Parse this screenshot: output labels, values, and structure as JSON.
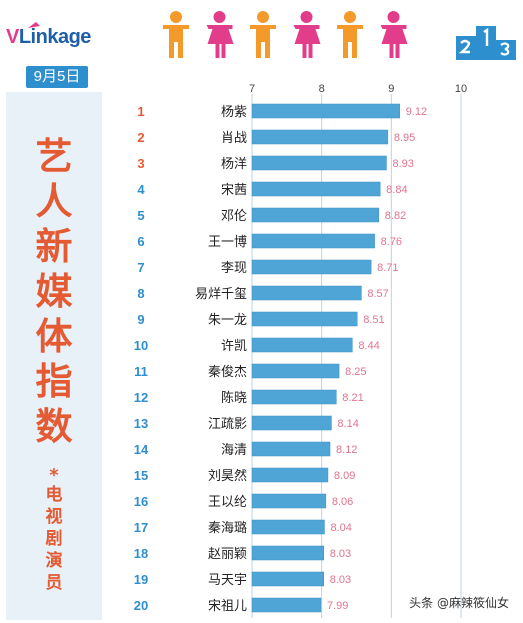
{
  "brand": {
    "logo_text_v": "V",
    "logo_text_rest": "Linkage"
  },
  "date": "9月5日",
  "title_chars": [
    "艺",
    "人",
    "新",
    "媒",
    "体",
    "指",
    "数"
  ],
  "subtitle_mark": "*",
  "subtitle_chars": [
    "电",
    "视",
    "剧",
    "演",
    "员"
  ],
  "watermark": "头条 @麻辣筱仙女",
  "colors": {
    "bar": "#4fa6d6",
    "bar_stroke": "#3b8fc0",
    "value_text": "#e0748e",
    "rank_top": "#e45a32",
    "rank_rest": "#2e8fcf",
    "name_text": "#222222",
    "grid": "#b8d4e8",
    "title": "#e45a32",
    "person_orange": "#f39a2a",
    "person_pink": "#e23d8b",
    "podium": "#2e8fcf"
  },
  "chart_data": {
    "type": "bar",
    "orientation": "horizontal",
    "title": "",
    "xlabel": "",
    "ylabel": "",
    "xlim": [
      7,
      10
    ],
    "x_ticks": [
      7,
      8,
      9,
      10
    ],
    "grid": true,
    "ranks": [
      1,
      2,
      3,
      4,
      5,
      6,
      7,
      8,
      9,
      10,
      11,
      12,
      13,
      14,
      15,
      16,
      17,
      18,
      19,
      20
    ],
    "categories": [
      "杨紫",
      "肖战",
      "杨洋",
      "宋茜",
      "邓伦",
      "王一博",
      "李现",
      "易烊千玺",
      "朱一龙",
      "许凯",
      "秦俊杰",
      "陈晓",
      "江疏影",
      "海清",
      "刘昊然",
      "王以纶",
      "秦海璐",
      "赵丽颖",
      "马天宇",
      "宋祖儿"
    ],
    "values": [
      9.12,
      8.95,
      8.93,
      8.84,
      8.82,
      8.76,
      8.71,
      8.57,
      8.51,
      8.44,
      8.25,
      8.21,
      8.14,
      8.12,
      8.09,
      8.06,
      8.04,
      8.03,
      8.03,
      7.99
    ],
    "value_labels": [
      "9.12",
      "8.95",
      "8.93",
      "8.84",
      "8.82",
      "8.76",
      "8.71",
      "8.57",
      "8.51",
      "8.44",
      "8.25",
      "8.21",
      "8.14",
      "8.12",
      "8.09",
      "8.06",
      "8.04",
      "8.03",
      "8.03",
      "7.99"
    ]
  }
}
